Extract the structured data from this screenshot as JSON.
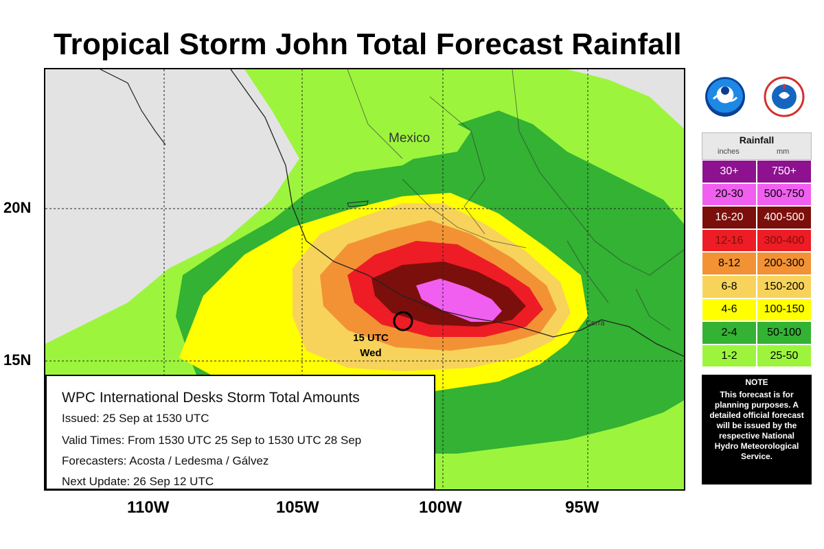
{
  "title": "Tropical Storm John Total Forecast Rainfall",
  "map": {
    "country_label": "Mexico",
    "coast_label": "Cerra",
    "storm_label_line1": "15 UTC",
    "storm_label_line2": "Wed",
    "lat_labels": [
      "20N",
      "15N"
    ],
    "lon_labels": [
      "110W",
      "105W",
      "100W",
      "95W"
    ],
    "colors": {
      "land": "#e3e3e3",
      "c1_2": "#9cf53c",
      "c2_4": "#33b233",
      "c4_6": "#ffff00",
      "c6_8": "#f7d35b",
      "c8_12": "#f39234",
      "c12_16": "#ee1c25",
      "c16_20": "#7b0f0c",
      "c20_30": "#f05ff0",
      "c30_plus": "#8e1190"
    }
  },
  "logos": {
    "noaa": "noaa-logo-icon",
    "nws": "nws-logo-icon"
  },
  "legend": {
    "title": "Rainfall",
    "unit_in": "inches",
    "unit_mm": "mm",
    "rows": [
      {
        "in": "30+",
        "mm": "750+",
        "color": "#8e1190",
        "text": "#ffffff"
      },
      {
        "in": "20-30",
        "mm": "500-750",
        "color": "#f05ff0",
        "text": "#000000"
      },
      {
        "in": "16-20",
        "mm": "400-500",
        "color": "#7b0f0c",
        "text": "#ffffff"
      },
      {
        "in": "12-16",
        "mm": "300-400",
        "color": "#ee1c25",
        "text": "#7b0f0c"
      },
      {
        "in": "8-12",
        "mm": "200-300",
        "color": "#f39234",
        "text": "#000000"
      },
      {
        "in": "6-8",
        "mm": "150-200",
        "color": "#f7d35b",
        "text": "#000000"
      },
      {
        "in": "4-6",
        "mm": "100-150",
        "color": "#ffff00",
        "text": "#000000"
      },
      {
        "in": "2-4",
        "mm": "50-100",
        "color": "#33b233",
        "text": "#000000"
      },
      {
        "in": "1-2",
        "mm": "25-50",
        "color": "#9cf53c",
        "text": "#000000"
      }
    ]
  },
  "note": {
    "title": "NOTE",
    "body": "This forecast is for planning purposes. A detailed official forecast will be issued by the respective National Hydro Meteorological Service."
  },
  "info": {
    "title": "WPC International Desks Storm Total Amounts",
    "issued": "Issued:  25 Sep at 1530 UTC",
    "valid": "Valid Times:  From 1530 UTC 25 Sep to 1530 UTC 28 Sep",
    "forecasters": "Forecasters:  Acosta / Ledesma /  Gálvez",
    "next_update": "Next Update: 26 Sep 12 UTC"
  }
}
